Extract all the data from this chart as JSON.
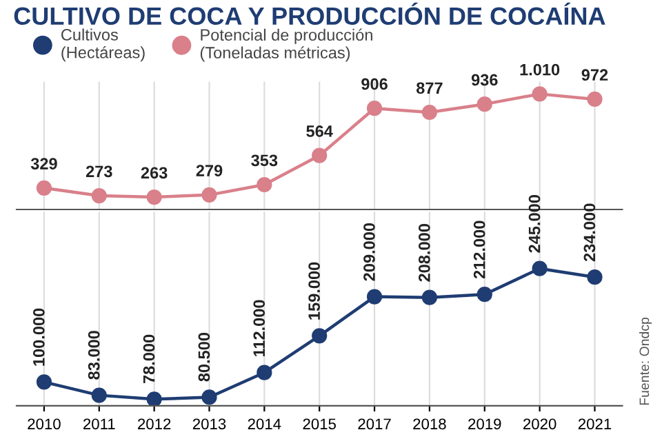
{
  "chart_data": [
    {
      "type": "line",
      "title": "CULTIVO DE COCA Y PRODUCCIÓN DE COCAÍNA",
      "categories": [
        "2010",
        "2011",
        "2012",
        "2013",
        "2014",
        "2015",
        "2017",
        "2018",
        "2019",
        "2020",
        "2021"
      ],
      "series": [
        {
          "name": "Potencial de producción\n(Toneladas métricas)",
          "color": "#d9808a",
          "values": [
            329,
            273,
            263,
            279,
            353,
            564,
            906,
            877,
            936,
            1010,
            972
          ],
          "value_labels": [
            "329",
            "273",
            "263",
            "279",
            "353",
            "564",
            "906",
            "877",
            "936",
            "1.010",
            "972"
          ]
        }
      ],
      "data_labels": true,
      "marker": "circle",
      "legend": "top",
      "grid": "x",
      "tick_labels": false
    },
    {
      "type": "line",
      "categories": [
        "2010",
        "2011",
        "2012",
        "2013",
        "2014",
        "2015",
        "2017",
        "2018",
        "2019",
        "2020",
        "2021"
      ],
      "series": [
        {
          "name": "Cultivos\n(Hectáreas)",
          "color": "#1f3d73",
          "values": [
            100000,
            83000,
            78000,
            80500,
            112000,
            159000,
            209000,
            208000,
            212000,
            245000,
            234000
          ],
          "value_labels": [
            "100.000",
            "83.000",
            "78.000",
            "80.500",
            "112.000",
            "159.000",
            "209.000",
            "208.000",
            "212.000",
            "245.000",
            "234.000"
          ]
        }
      ],
      "data_labels": true,
      "marker": "circle",
      "legend": "top left",
      "grid": "x",
      "tick_labels": "x",
      "annotations": [
        "Fuente: Ondcp"
      ]
    }
  ]
}
